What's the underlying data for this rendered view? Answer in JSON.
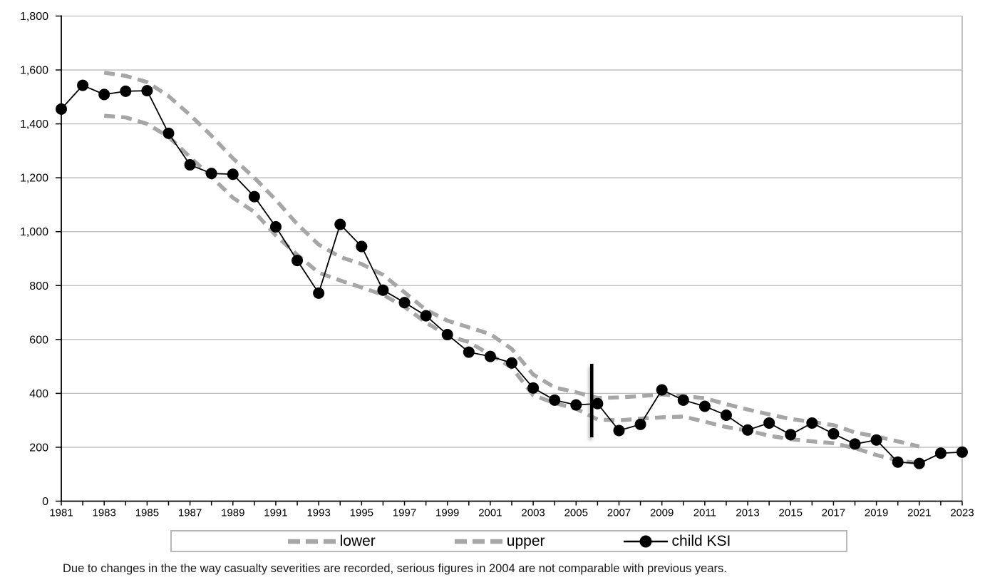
{
  "page": {
    "background": "#ffffff"
  },
  "chart_data": {
    "type": "line",
    "title": "",
    "xlabel": "",
    "ylabel": "",
    "x": [
      1981,
      1982,
      1983,
      1984,
      1985,
      1986,
      1987,
      1988,
      1989,
      1990,
      1991,
      1992,
      1993,
      1994,
      1995,
      1996,
      1997,
      1998,
      1999,
      2000,
      2001,
      2002,
      2003,
      2004,
      2005,
      2006,
      2007,
      2008,
      2009,
      2010,
      2011,
      2012,
      2013,
      2014,
      2015,
      2016,
      2017,
      2018,
      2019,
      2020,
      2021,
      2022,
      2023
    ],
    "series": [
      {
        "name": "lower",
        "style": "dashed",
        "color": "#a6a6a6",
        "values": [
          null,
          null,
          1430,
          1424,
          1400,
          1352,
          1277,
          1203,
          1126,
          1073,
          986,
          914,
          848,
          819,
          793,
          766,
          721,
          663,
          615,
          590,
          544,
          496,
          393,
          364,
          343,
          303,
          300,
          306,
          311,
          314,
          295,
          275,
          262,
          243,
          230,
          222,
          215,
          197,
          171,
          152,
          140,
          null,
          null
        ]
      },
      {
        "name": "upper",
        "style": "dashed",
        "color": "#a6a6a6",
        "values": [
          null,
          null,
          1590,
          1578,
          1555,
          1503,
          1433,
          1356,
          1272,
          1200,
          1118,
          1028,
          952,
          906,
          880,
          840,
          775,
          710,
          670,
          645,
          620,
          565,
          470,
          422,
          404,
          383,
          385,
          390,
          396,
          390,
          382,
          360,
          340,
          322,
          305,
          294,
          282,
          255,
          240,
          222,
          203,
          null,
          null
        ]
      },
      {
        "name": "child KSI",
        "style": "line-marker",
        "color": "#000000",
        "values": [
          1455,
          1543,
          1509,
          1521,
          1523,
          1365,
          1248,
          1216,
          1213,
          1130,
          1018,
          893,
          772,
          1027,
          945,
          783,
          737,
          688,
          618,
          553,
          537,
          513,
          420,
          375,
          357,
          362,
          262,
          285,
          413,
          375,
          352,
          319,
          264,
          290,
          247,
          290,
          250,
          212,
          227,
          145,
          140,
          178,
          182
        ]
      }
    ],
    "ylim": [
      0,
      1800
    ],
    "ytick_step": 200,
    "ytick_labels": [
      "0",
      "200",
      "400",
      "600",
      "800",
      "1,000",
      "1,200",
      "1,400",
      "1,600",
      "1,800"
    ],
    "xtick_labels": [
      "1981",
      "1983",
      "1985",
      "1987",
      "1989",
      "1991",
      "1993",
      "1995",
      "1997",
      "1999",
      "2001",
      "2003",
      "2005",
      "2007",
      "2009",
      "2011",
      "2013",
      "2015",
      "2017",
      "2019",
      "2021",
      "2023"
    ],
    "grid": "horizontal",
    "grid_color": "#b9b9b9",
    "axis_color": "#000000",
    "legend_position": "bottom",
    "break_line": {
      "x_year": 2005.73,
      "value_from": 237,
      "value_to": 510,
      "color": "#000000"
    }
  },
  "legend": {
    "border_color": "#b9b9b9",
    "items": [
      {
        "label": "lower",
        "swatch": "gray-dashed-line"
      },
      {
        "label": "upper",
        "swatch": "gray-dashed-line"
      },
      {
        "label": "child KSI",
        "swatch": "black-line-circle-marker"
      }
    ]
  },
  "note": {
    "text": "Due to changes in the the way casualty severities are recorded, serious figures in 2004 are not comparable with previous years."
  }
}
